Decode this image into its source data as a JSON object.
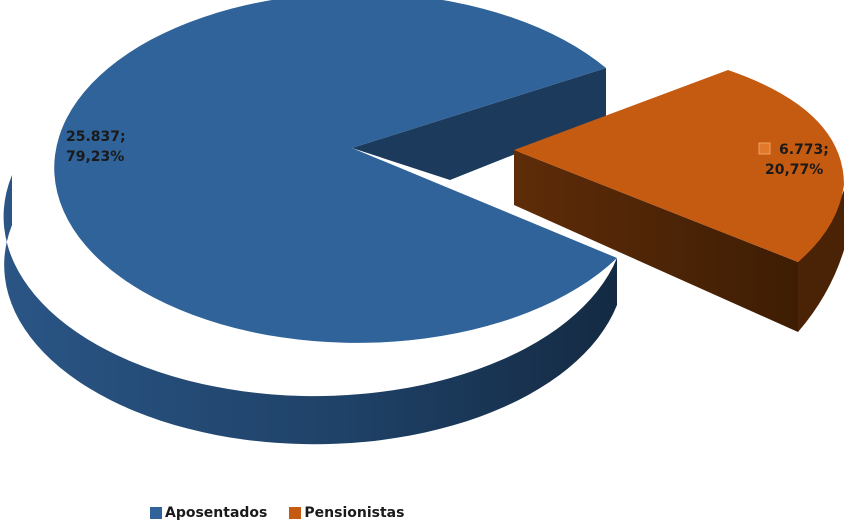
{
  "chart_data": {
    "type": "pie",
    "three_d": true,
    "exploded": true,
    "categories": [
      "Aposentados",
      "Pensionistas"
    ],
    "values": [
      25837,
      6773
    ],
    "value_labels": [
      "25.837;",
      "6.773;"
    ],
    "percent_labels": [
      "79,23%",
      "20,77%"
    ],
    "colors": [
      "#2f6399",
      "#c55a11"
    ],
    "side_colors": [
      "#1c3a5c",
      "#552706"
    ],
    "legend_position": "bottom",
    "title": ""
  },
  "legend": {
    "items": [
      {
        "label": "Aposentados",
        "color": "#2f6399"
      },
      {
        "label": "Pensionistas",
        "color": "#c55a11"
      }
    ]
  }
}
